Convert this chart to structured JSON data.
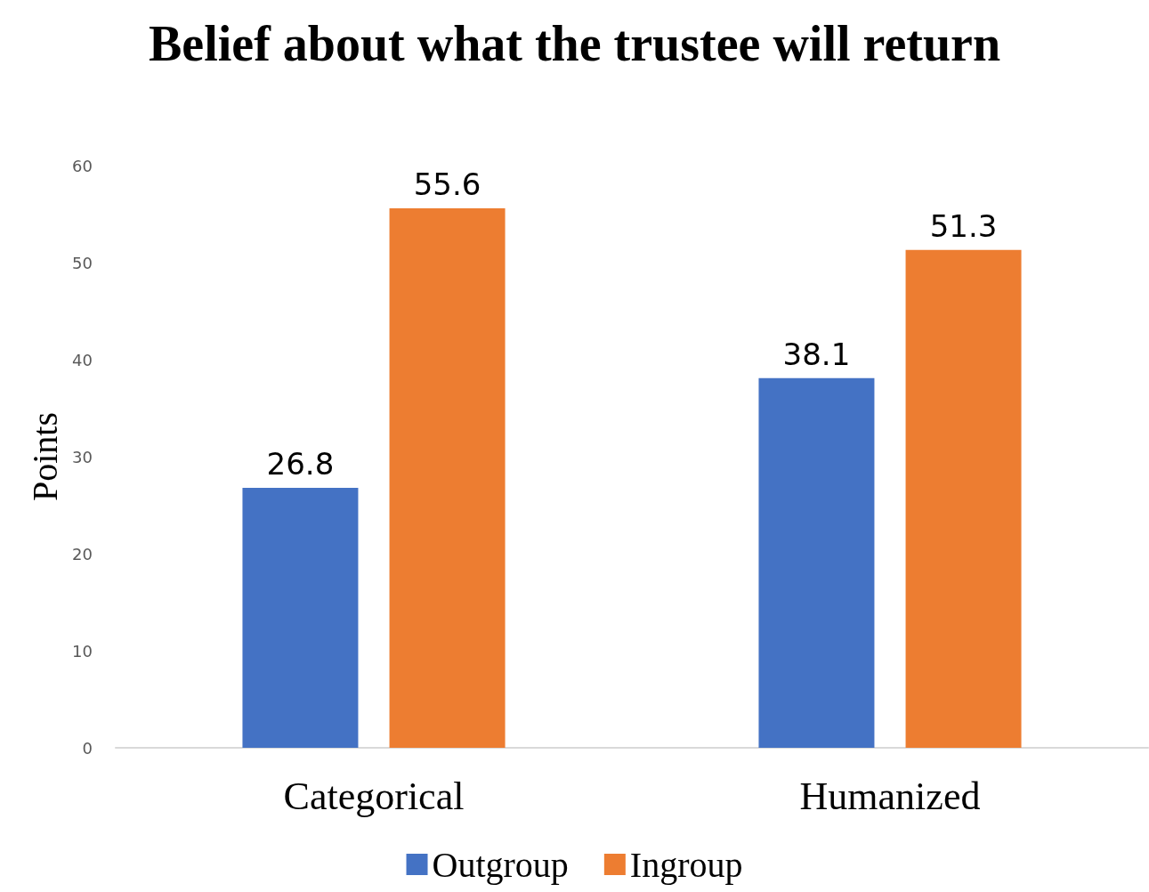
{
  "chart_data": {
    "type": "bar",
    "title": "Belief about what the trustee will return",
    "ylabel": "Points",
    "categories": [
      "Categorical",
      "Humanized"
    ],
    "series": [
      {
        "name": "Outgroup",
        "color": "#4472c4",
        "values": [
          26.8,
          38.1
        ]
      },
      {
        "name": "Ingroup",
        "color": "#ed7d31",
        "values": [
          55.6,
          51.3
        ]
      }
    ],
    "ylim": [
      0,
      60
    ],
    "yticks": [
      0,
      10,
      20,
      30,
      40,
      50,
      60
    ],
    "grid": false,
    "legend": "bottom",
    "data_labels": true
  }
}
